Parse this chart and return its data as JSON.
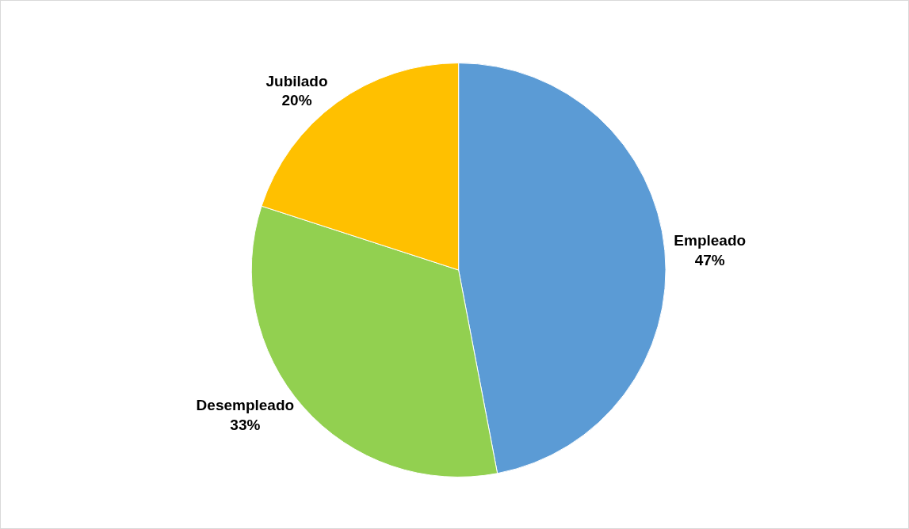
{
  "chart_data": {
    "type": "pie",
    "categories": [
      "Empleado",
      "Desempleado",
      "Jubilado"
    ],
    "values": [
      47,
      33,
      20
    ],
    "colors": [
      "#5b9bd5",
      "#92d050",
      "#ffc000"
    ],
    "value_labels": [
      "47%",
      "33%",
      "20%"
    ],
    "legend": false
  }
}
